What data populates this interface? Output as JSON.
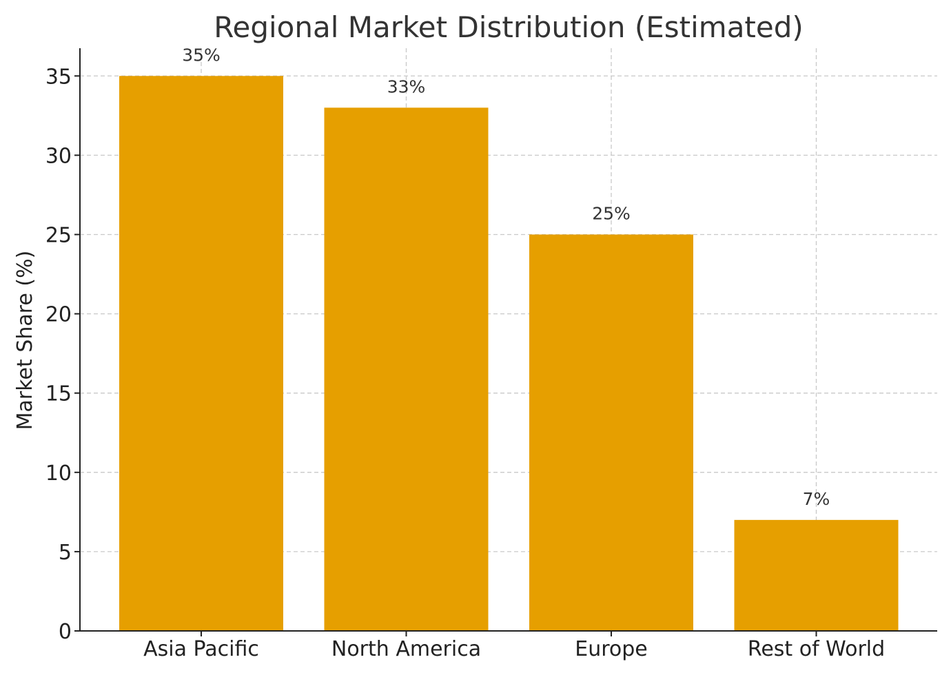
{
  "chart_data": {
    "type": "bar",
    "title": "Regional Market Distribution (Estimated)",
    "xlabel": "",
    "ylabel": "Market Share (%)",
    "categories": [
      "Asia Pacific",
      "North America",
      "Europe",
      "Rest of World"
    ],
    "values": [
      35,
      33,
      25,
      7
    ],
    "data_labels": [
      "35%",
      "33%",
      "25%",
      "7%"
    ],
    "ylim": [
      0,
      36.75
    ],
    "yticks": [
      0,
      5,
      10,
      15,
      20,
      25,
      30,
      35
    ],
    "grid": true,
    "bar_color": "#E69F00",
    "legend": "none"
  }
}
